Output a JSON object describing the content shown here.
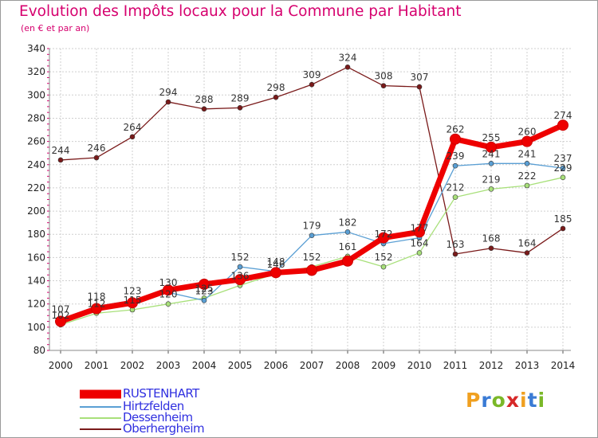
{
  "title": "Evolution des Impôts locaux pour la Commune par Habitant",
  "subtitle": "(en € et par an)",
  "logo": {
    "letters": [
      "P",
      "r",
      "o",
      "x",
      "i",
      "t",
      "i"
    ],
    "colors": [
      "#f0a020",
      "#3a7bd5",
      "#7ab828",
      "#d62828",
      "#f0a020",
      "#3a7bd5",
      "#7ab828"
    ]
  },
  "chart_data": {
    "type": "line",
    "title": "Evolution des Impôts locaux pour la Commune par Habitant",
    "subtitle": "(en € et par an)",
    "xlabel": "",
    "ylabel": "",
    "ylim": [
      80,
      340
    ],
    "yticks": [
      80,
      100,
      120,
      140,
      160,
      180,
      200,
      220,
      240,
      260,
      280,
      300,
      320,
      340
    ],
    "categories": [
      "2000",
      "2001",
      "2002",
      "2003",
      "2004",
      "2005",
      "2006",
      "2007",
      "2008",
      "2009",
      "2010",
      "2011",
      "2012",
      "2013",
      "2014"
    ],
    "grid": true,
    "legend_position": "bottom-left",
    "series": [
      {
        "name": "RUSTENHART",
        "color": "#ee0000",
        "values": [
          105,
          116,
          121,
          132,
          137,
          141,
          147,
          149,
          157,
          177,
          182,
          262,
          255,
          260,
          274
        ],
        "labels": [
          "",
          "",
          "",
          "",
          "",
          "",
          "",
          "",
          "",
          "",
          "",
          "262",
          "255",
          "260",
          "274"
        ]
      },
      {
        "name": "Hirtzfelden",
        "color": "#5a9fd4",
        "values": [
          107,
          118,
          123,
          130,
          123,
          152,
          148,
          179,
          182,
          172,
          177,
          239,
          241,
          241,
          237
        ],
        "labels": [
          "107",
          "118",
          "123",
          "130",
          "123",
          "152",
          "148",
          "179",
          "182",
          "172",
          "177",
          "239",
          "241",
          "241",
          "237"
        ]
      },
      {
        "name": "Dessenheim",
        "color": "#a8e07a",
        "values": [
          102,
          112,
          115,
          120,
          125,
          136,
          146,
          152,
          161,
          152,
          164,
          212,
          219,
          222,
          229
        ],
        "labels": [
          "102",
          "112",
          "115",
          "120",
          "125",
          "136",
          "146",
          "152",
          "161",
          "152",
          "164",
          "212",
          "219",
          "222",
          "229"
        ]
      },
      {
        "name": "Oberhergheim",
        "color": "#7a1a1a",
        "values": [
          244,
          246,
          264,
          294,
          288,
          289,
          298,
          309,
          324,
          308,
          307,
          163,
          168,
          164,
          185
        ],
        "labels": [
          "244",
          "246",
          "264",
          "294",
          "288",
          "289",
          "298",
          "309",
          "324",
          "308",
          "307",
          "163",
          "168",
          "164",
          "185"
        ]
      }
    ]
  }
}
